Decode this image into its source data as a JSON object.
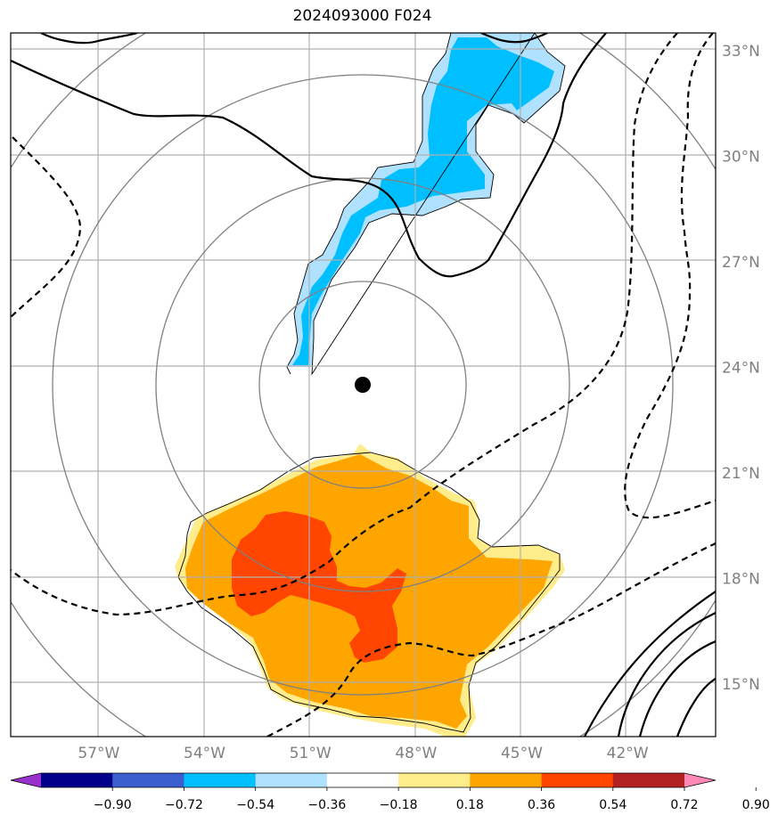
{
  "title": "2024093000 F024",
  "chart_data": {
    "type": "heatmap",
    "title": "2024093000 F024",
    "projection": "map with range rings",
    "x_axis": {
      "ticks": [
        "57°W",
        "54°W",
        "51°W",
        "48°W",
        "45°W",
        "42°W"
      ],
      "values": [
        -57,
        -54,
        -51,
        -48,
        -45,
        -42
      ],
      "range": [
        -59.5,
        -39.5
      ]
    },
    "y_axis": {
      "ticks": [
        "33°N",
        "30°N",
        "27°N",
        "24°N",
        "21°N",
        "18°N",
        "15°N"
      ],
      "values": [
        33,
        30,
        27,
        24,
        21,
        18,
        15
      ],
      "range": [
        13.5,
        33.5
      ]
    },
    "grid": true,
    "center_marker": {
      "lon": -49.5,
      "lat": 23.5
    },
    "range_ring_count": 4,
    "colorbar": {
      "orientation": "horizontal",
      "extend": "both",
      "levels": [
        -0.9,
        -0.72,
        -0.54,
        -0.36,
        -0.18,
        0.18,
        0.36,
        0.54,
        0.72,
        0.9
      ],
      "tick_labels": [
        "−0.90",
        "−0.72",
        "−0.54",
        "−0.36",
        "−0.18",
        "0.18",
        "0.36",
        "0.54",
        "0.72",
        "0.90"
      ],
      "colors": [
        "#9932cc",
        "#00008b",
        "#3a5fcd",
        "#00bfff",
        "#b0e2ff",
        "#ffffff",
        "#ffec8b",
        "#ffa500",
        "#ff4500",
        "#b22222",
        "#ff88b4"
      ]
    },
    "features": [
      {
        "name": "negative anomaly band",
        "sign": "negative",
        "min_level": -0.54,
        "lon_span": [
          -51.5,
          -44.5
        ],
        "lat_span": [
          23.8,
          33.5
        ]
      },
      {
        "name": "positive anomaly region",
        "sign": "positive",
        "max_level": 0.72,
        "lon_span": [
          -54.5,
          -44.0
        ],
        "lat_span": [
          13.5,
          22.3
        ]
      }
    ]
  }
}
